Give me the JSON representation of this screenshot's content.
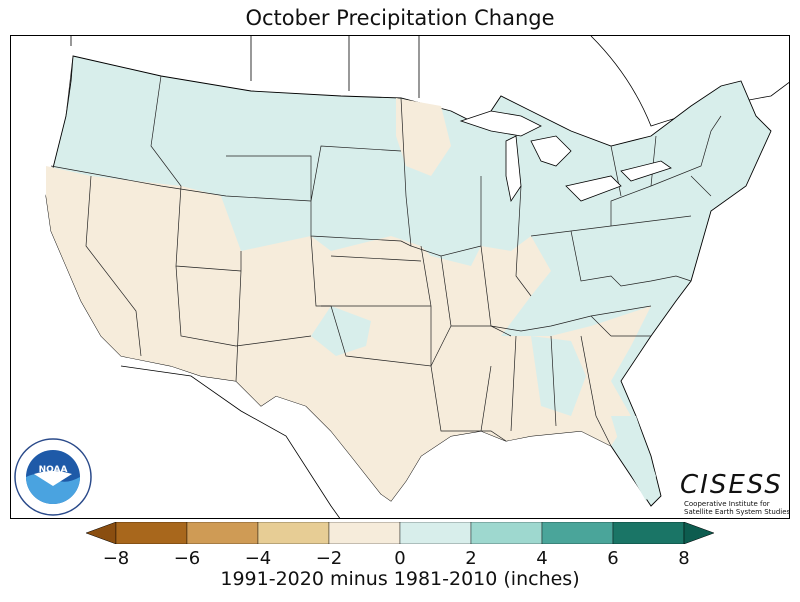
{
  "title": "October Precipitation Change",
  "colorbar": {
    "label": "1991-2020 minus 1981-2010 (inches)",
    "ticks": [
      "−8",
      "−6",
      "−4",
      "−2",
      "0",
      "2",
      "4",
      "6",
      "8"
    ],
    "colors": [
      "#a8671c",
      "#cf9b55",
      "#e7cd95",
      "#f6ecdb",
      "#d8eeeb",
      "#9ed8cf",
      "#4aa59a",
      "#1a7566"
    ],
    "extend_low_color": "#8a4e10",
    "extend_high_color": "#0d5c4f"
  },
  "map": {
    "region": "CONUS",
    "dominant_west_color": "#f6ecdb",
    "dominant_north_east_color": "#d8eeeb"
  },
  "logos": {
    "noaa": "NOAA",
    "noaa_ring_text": "NATIONAL OCEANIC AND ATMOSPHERIC ADMINISTRATION • U.S. DEPARTMENT OF COMMERCE",
    "cisess_word": "CISESS",
    "cisess_sub1": "Cooperative Institute for",
    "cisess_sub2": "Satellite Earth System Studies"
  }
}
